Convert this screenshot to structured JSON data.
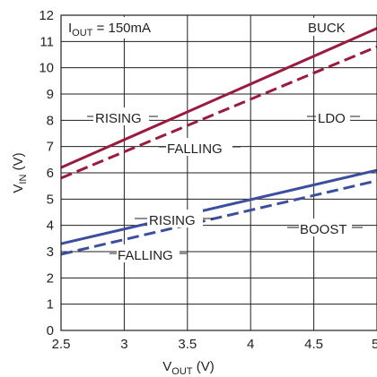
{
  "chart_data": {
    "type": "line",
    "xlabel_main": "V",
    "xlabel_sub": "OUT",
    "xlabel_unit": " (V)",
    "ylabel_main": "V",
    "ylabel_sub": "IN",
    "ylabel_unit": " (V)",
    "condition_main": "I",
    "condition_sub": "OUT",
    "condition_rest": " = 150mA",
    "xlim": [
      2.5,
      5
    ],
    "ylim": [
      0,
      12
    ],
    "xticks": [
      "2.5",
      "3",
      "3.5",
      "4",
      "4.5",
      "5"
    ],
    "yticks": [
      "0",
      "1",
      "2",
      "3",
      "4",
      "5",
      "6",
      "7",
      "8",
      "9",
      "10",
      "11",
      "12"
    ],
    "grid": true,
    "series": [
      {
        "key": "buck_ldo_rising",
        "color": "#9b1b3f",
        "dash": "solid",
        "x": [
          2.5,
          5
        ],
        "y": [
          6.2,
          11.5
        ]
      },
      {
        "key": "buck_ldo_falling",
        "color": "#9b1b3f",
        "dash": "dashed",
        "x": [
          2.5,
          5
        ],
        "y": [
          5.8,
          10.8
        ]
      },
      {
        "key": "boost_rising",
        "color": "#3b4f9e",
        "dash": "solid",
        "x": [
          2.5,
          5
        ],
        "y": [
          3.3,
          6.1
        ]
      },
      {
        "key": "boost_falling",
        "color": "#3b4f9e",
        "dash": "dashed",
        "x": [
          2.5,
          5
        ],
        "y": [
          2.9,
          5.7
        ]
      }
    ],
    "annotations": {
      "buck": "BUCK",
      "ldo": "LDO",
      "boost": "BOOST",
      "rising_top": "RISING",
      "falling_top": "FALLING",
      "rising_bottom": "RISING",
      "falling_bottom": "FALLING"
    }
  }
}
